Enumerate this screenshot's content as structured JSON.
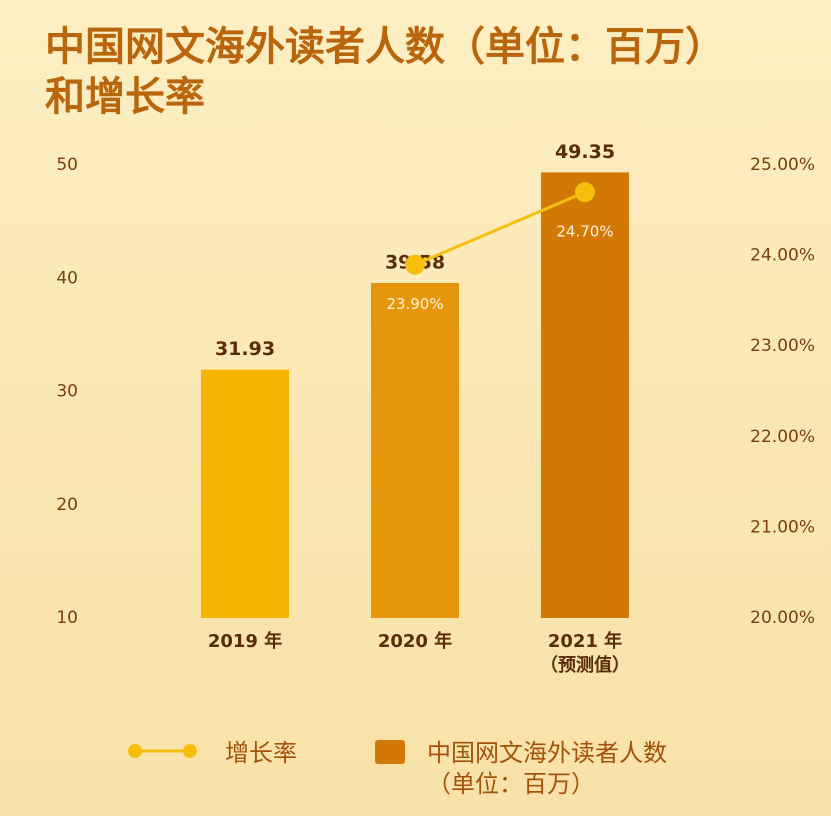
{
  "chart_data": {
    "type": "bar-line",
    "title": "中国网文海外读者人数（单位：百万）\n和增长率",
    "categories": [
      "2019 年",
      "2020 年",
      "2021 年\n（预测值）"
    ],
    "series": [
      {
        "name": "中国网文海外读者人数\n（单位：百万）",
        "type": "bar",
        "colors": [
          "#f5b400",
          "#e6960a",
          "#d27806"
        ],
        "values": [
          31.93,
          39.58,
          49.35
        ]
      },
      {
        "name": "增长率",
        "type": "line",
        "axis": "y2",
        "color": "#f7bf0d",
        "values": [
          null,
          23.9,
          24.7
        ],
        "value_labels": [
          null,
          "23.90%",
          "24.70%"
        ]
      }
    ],
    "ylim": [
      10,
      50
    ],
    "yticks": [
      10,
      20,
      30,
      40,
      50
    ],
    "y2lim": [
      20,
      25
    ],
    "y2ticks": [
      {
        "value": 20,
        "label": "20.00%"
      },
      {
        "value": 21,
        "label": "21.00%"
      },
      {
        "value": 22,
        "label": "22.00%"
      },
      {
        "value": 23,
        "label": "23.00%"
      },
      {
        "value": 24,
        "label": "24.00%"
      },
      {
        "value": 25,
        "label": "25.00%"
      }
    ],
    "grid": false,
    "legend": "bottom"
  }
}
